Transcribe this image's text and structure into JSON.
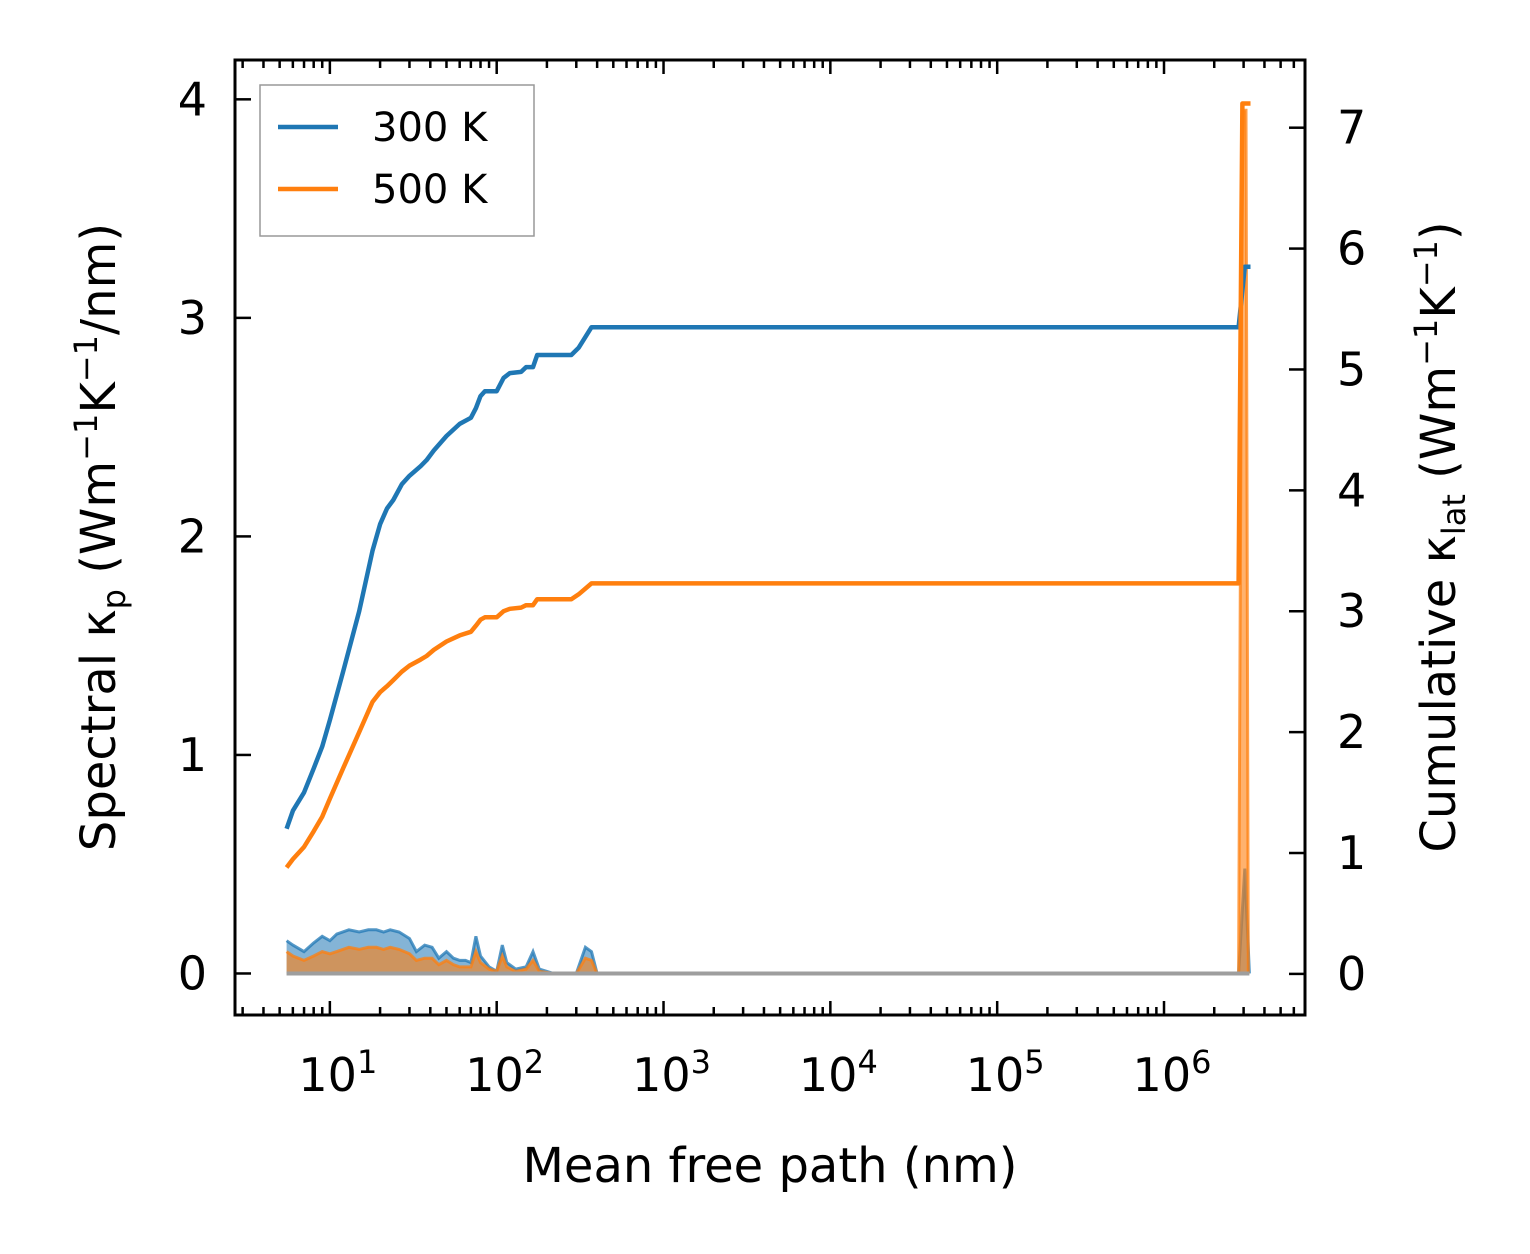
{
  "chart_data": {
    "type": "line",
    "xlabel": "Mean free path (nm)",
    "xscale": "log",
    "xlim": [
      2.7,
      7000000
    ],
    "x_ticks": [
      {
        "value": 10,
        "base": "10",
        "exp": "1"
      },
      {
        "value": 100,
        "base": "10",
        "exp": "2"
      },
      {
        "value": 1000,
        "base": "10",
        "exp": "3"
      },
      {
        "value": 10000,
        "base": "10",
        "exp": "4"
      },
      {
        "value": 100000,
        "base": "10",
        "exp": "5"
      },
      {
        "value": 1000000,
        "base": "10",
        "exp": "6"
      }
    ],
    "ylabel_left": {
      "a": "Spectral κ",
      "sub": "p",
      "b": " (Wm",
      "sup1": "−1",
      "c": "K",
      "sup2": "−1",
      "d": "/nm)"
    },
    "ylim_left": [
      -0.19,
      4.18
    ],
    "yticks_left": [
      "0",
      "1",
      "2",
      "3",
      "4"
    ],
    "ylabel_right": {
      "a": "Cumulative κ",
      "sub": "lat",
      "b": " (Wm",
      "sup1": "−1",
      "c": "K",
      "sup2": "−1",
      "d": ")"
    },
    "ylim_right": [
      -0.34,
      7.56
    ],
    "yticks_right": [
      "0",
      "1",
      "2",
      "3",
      "4",
      "5",
      "6",
      "7"
    ],
    "legend_position": "top-left",
    "series": [
      {
        "name": "300 K",
        "color": "#1f77b4",
        "cumulative": [
          [
            5.5,
            1.2
          ],
          [
            6,
            1.35
          ],
          [
            7,
            1.5
          ],
          [
            8,
            1.7
          ],
          [
            9,
            1.88
          ],
          [
            10,
            2.1
          ],
          [
            12,
            2.5
          ],
          [
            15,
            3.0
          ],
          [
            18,
            3.5
          ],
          [
            20,
            3.72
          ],
          [
            22,
            3.85
          ],
          [
            24,
            3.92
          ],
          [
            27,
            4.05
          ],
          [
            30,
            4.12
          ],
          [
            35,
            4.2
          ],
          [
            38,
            4.25
          ],
          [
            42,
            4.33
          ],
          [
            50,
            4.45
          ],
          [
            60,
            4.55
          ],
          [
            70,
            4.6
          ],
          [
            75,
            4.68
          ],
          [
            80,
            4.78
          ],
          [
            85,
            4.82
          ],
          [
            100,
            4.82
          ],
          [
            110,
            4.93
          ],
          [
            120,
            4.97
          ],
          [
            140,
            4.98
          ],
          [
            150,
            5.02
          ],
          [
            165,
            5.02
          ],
          [
            175,
            5.12
          ],
          [
            280,
            5.12
          ],
          [
            310,
            5.18
          ],
          [
            370,
            5.35
          ],
          [
            2800000,
            5.35
          ],
          [
            3050000,
            5.85
          ],
          [
            3300000,
            5.85
          ]
        ],
        "spectral": [
          [
            5.5,
            0.15
          ],
          [
            6,
            0.13
          ],
          [
            7,
            0.1
          ],
          [
            8,
            0.14
          ],
          [
            9,
            0.17
          ],
          [
            10,
            0.15
          ],
          [
            11,
            0.18
          ],
          [
            13,
            0.2
          ],
          [
            15,
            0.19
          ],
          [
            17,
            0.2
          ],
          [
            19,
            0.2
          ],
          [
            21,
            0.19
          ],
          [
            23,
            0.2
          ],
          [
            26,
            0.19
          ],
          [
            30,
            0.16
          ],
          [
            33,
            0.1
          ],
          [
            37,
            0.13
          ],
          [
            41,
            0.12
          ],
          [
            45,
            0.07
          ],
          [
            50,
            0.1
          ],
          [
            55,
            0.07
          ],
          [
            60,
            0.06
          ],
          [
            65,
            0.06
          ],
          [
            70,
            0.05
          ],
          [
            75,
            0.17
          ],
          [
            80,
            0.08
          ],
          [
            90,
            0.03
          ],
          [
            100,
            0.01
          ],
          [
            108,
            0.13
          ],
          [
            115,
            0.05
          ],
          [
            130,
            0.02
          ],
          [
            150,
            0.03
          ],
          [
            165,
            0.1
          ],
          [
            180,
            0.02
          ],
          [
            220,
            0.0
          ],
          [
            300,
            0.0
          ],
          [
            340,
            0.12
          ],
          [
            370,
            0.1
          ],
          [
            400,
            0.0
          ],
          [
            2800000,
            0.0
          ],
          [
            3050000,
            0.48
          ],
          [
            3250000,
            0.0
          ]
        ]
      },
      {
        "name": "500 K",
        "color": "#ff7f0e",
        "cumulative": [
          [
            5.5,
            0.88
          ],
          [
            6,
            0.95
          ],
          [
            7,
            1.05
          ],
          [
            8,
            1.18
          ],
          [
            9,
            1.3
          ],
          [
            10,
            1.45
          ],
          [
            12,
            1.7
          ],
          [
            15,
            2.0
          ],
          [
            18,
            2.25
          ],
          [
            20,
            2.33
          ],
          [
            22,
            2.38
          ],
          [
            24,
            2.43
          ],
          [
            27,
            2.5
          ],
          [
            30,
            2.55
          ],
          [
            35,
            2.6
          ],
          [
            38,
            2.63
          ],
          [
            42,
            2.68
          ],
          [
            50,
            2.75
          ],
          [
            60,
            2.8
          ],
          [
            70,
            2.83
          ],
          [
            75,
            2.88
          ],
          [
            80,
            2.93
          ],
          [
            85,
            2.95
          ],
          [
            100,
            2.95
          ],
          [
            110,
            3.0
          ],
          [
            120,
            3.02
          ],
          [
            140,
            3.03
          ],
          [
            150,
            3.05
          ],
          [
            165,
            3.05
          ],
          [
            175,
            3.1
          ],
          [
            280,
            3.1
          ],
          [
            310,
            3.14
          ],
          [
            370,
            3.23
          ],
          [
            2800000,
            3.23
          ],
          [
            2950000,
            7.2
          ],
          [
            3050000,
            7.2
          ],
          [
            3300000,
            7.2
          ]
        ],
        "spectral": [
          [
            5.5,
            0.1
          ],
          [
            6,
            0.08
          ],
          [
            7,
            0.06
          ],
          [
            8,
            0.08
          ],
          [
            9,
            0.1
          ],
          [
            10,
            0.09
          ],
          [
            11,
            0.1
          ],
          [
            13,
            0.12
          ],
          [
            15,
            0.11
          ],
          [
            17,
            0.12
          ],
          [
            19,
            0.12
          ],
          [
            21,
            0.11
          ],
          [
            23,
            0.12
          ],
          [
            26,
            0.11
          ],
          [
            30,
            0.09
          ],
          [
            33,
            0.06
          ],
          [
            37,
            0.07
          ],
          [
            41,
            0.07
          ],
          [
            45,
            0.04
          ],
          [
            50,
            0.06
          ],
          [
            55,
            0.04
          ],
          [
            60,
            0.03
          ],
          [
            65,
            0.03
          ],
          [
            70,
            0.03
          ],
          [
            75,
            0.1
          ],
          [
            80,
            0.05
          ],
          [
            90,
            0.02
          ],
          [
            100,
            0.01
          ],
          [
            108,
            0.08
          ],
          [
            115,
            0.03
          ],
          [
            130,
            0.01
          ],
          [
            150,
            0.02
          ],
          [
            165,
            0.06
          ],
          [
            180,
            0.01
          ],
          [
            220,
            0.0
          ],
          [
            300,
            0.0
          ],
          [
            340,
            0.07
          ],
          [
            370,
            0.06
          ],
          [
            400,
            0.0
          ],
          [
            2800000,
            0.0
          ],
          [
            2950000,
            3.95
          ],
          [
            3100000,
            3.95
          ],
          [
            3200000,
            0.0
          ]
        ]
      }
    ]
  }
}
